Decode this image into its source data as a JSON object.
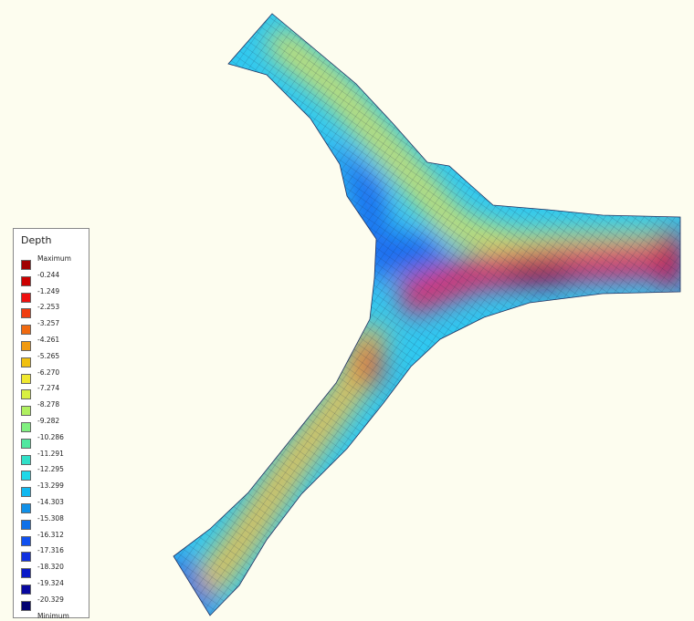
{
  "legend": {
    "title": "Depth",
    "labels": [
      "Maximum",
      "-0.244",
      "-1.249",
      "-2.253",
      "-3.257",
      "-4.261",
      "-5.265",
      "-6.270",
      "-7.274",
      "-8.278",
      "-9.282",
      "-10.286",
      "-11.291",
      "-12.295",
      "-13.299",
      "-14.303",
      "-15.308",
      "-16.312",
      "-17.316",
      "-18.320",
      "-19.324",
      "-20.329",
      "Minimum"
    ],
    "colors": [
      "#a00000",
      "#cc0000",
      "#ee1010",
      "#f03c10",
      "#f06a10",
      "#f09a10",
      "#f0c010",
      "#f0e830",
      "#d8f040",
      "#b0f060",
      "#80f080",
      "#50e8a0",
      "#30e0c8",
      "#20d8e8",
      "#10b8f0",
      "#1090e8",
      "#1070e8",
      "#1050f0",
      "#1030e0",
      "#0818c8",
      "#0808a0",
      "#000070"
    ]
  }
}
